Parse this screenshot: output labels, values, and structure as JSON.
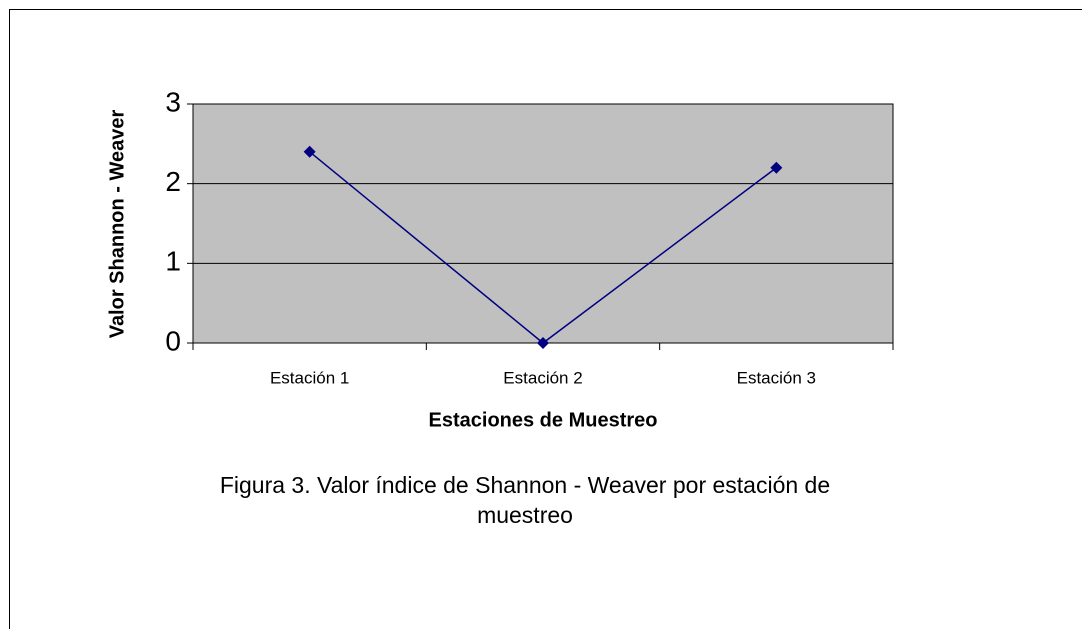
{
  "chart_data": {
    "type": "line",
    "categories": [
      "Estación 1",
      "Estación 2",
      "Estación 3"
    ],
    "series": [
      {
        "name": "Valor Shannon - Weaver",
        "color": "#000080",
        "values": [
          2.4,
          0,
          2.2
        ]
      }
    ],
    "ylim": [
      0,
      3
    ],
    "yticks": [
      0,
      1,
      2,
      3
    ],
    "grid": true,
    "xlabel": "Estaciones de Muestreo",
    "ylabel": "Valor Shannon - Weaver",
    "caption": "Figura 3. Valor índice de Shannon - Weaver por estación de muestreo"
  }
}
